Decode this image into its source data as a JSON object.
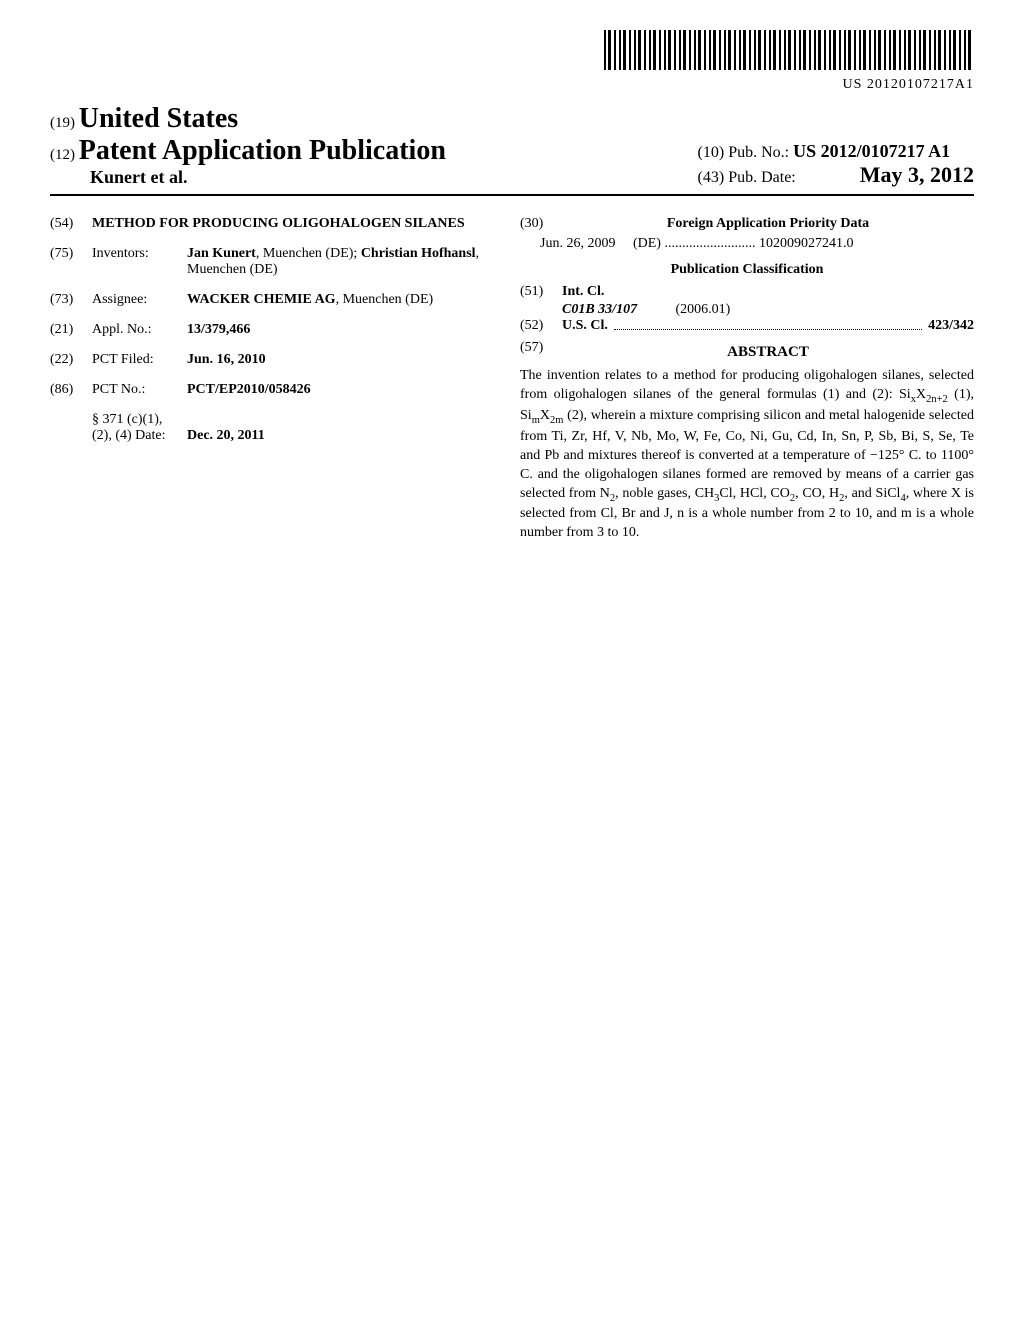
{
  "barcode_text": "US 20120107217A1",
  "header": {
    "country_code": "(19)",
    "country_name": "United States",
    "pub_type_code": "(12)",
    "pub_type": "Patent Application Publication",
    "authors": "Kunert et al.",
    "pub_no_code": "(10)",
    "pub_no_label": "Pub. No.:",
    "pub_no": "US 2012/0107217 A1",
    "pub_date_code": "(43)",
    "pub_date_label": "Pub. Date:",
    "pub_date": "May 3, 2012"
  },
  "left": {
    "title_code": "(54)",
    "title": "METHOD FOR PRODUCING OLIGOHALOGEN SILANES",
    "inventors_code": "(75)",
    "inventors_label": "Inventors:",
    "inventors_html": "<b>Jan Kunert</b>, Muenchen (DE); <b>Christian Hofhansl</b>, Muenchen (DE)",
    "assignee_code": "(73)",
    "assignee_label": "Assignee:",
    "assignee_html": "<b>WACKER CHEMIE AG</b>, Muenchen (DE)",
    "appl_code": "(21)",
    "appl_label": "Appl. No.:",
    "appl_no": "13/379,466",
    "pct_filed_code": "(22)",
    "pct_filed_label": "PCT Filed:",
    "pct_filed": "Jun. 16, 2010",
    "pct_no_code": "(86)",
    "pct_no_label": "PCT No.:",
    "pct_no": "PCT/EP2010/058426",
    "sec371_label": "§ 371 (c)(1),",
    "sec371_date_label": "(2), (4) Date:",
    "sec371_date": "Dec. 20, 2011"
  },
  "right": {
    "priority_code": "(30)",
    "priority_heading": "Foreign Application Priority Data",
    "priority_date": "Jun. 26, 2009",
    "priority_country": "(DE)",
    "priority_no": "102009027241.0",
    "classification_heading": "Publication Classification",
    "intcl_code": "(51)",
    "intcl_label": "Int. Cl.",
    "intcl_class": "C01B 33/107",
    "intcl_year": "(2006.01)",
    "uscl_code": "(52)",
    "uscl_label": "U.S. Cl.",
    "uscl_value": "423/342",
    "abstract_code": "(57)",
    "abstract_heading": "ABSTRACT",
    "abstract_html": "The invention relates to a method for producing oligohalogen silanes, selected from oligohalogen silanes of the general formulas (1) and (2): Si<sub>x</sub>X<sub>2n+2</sub> (1), Si<sub>m</sub>X<sub>2m</sub> (2), wherein a mixture comprising silicon and metal halogenide selected from Ti, Zr, Hf, V, Nb, Mo, W, Fe, Co, Ni, Gu, Cd, In, Sn, P, Sb, Bi, S, Se, Te and Pb and mixtures thereof is converted at a temperature of −125° C. to 1100° C. and the oligohalogen silanes formed are removed by means of a carrier gas selected from N<sub>2</sub>, noble gases, CH<sub>3</sub>Cl, HCl, CO<sub>2</sub>, CO, H<sub>2</sub>, and SiCl<sub>4</sub>, where X is selected from Cl, Br and J, n is a whole number from 2 to 10, and m is a whole number from 3 to 10."
  }
}
